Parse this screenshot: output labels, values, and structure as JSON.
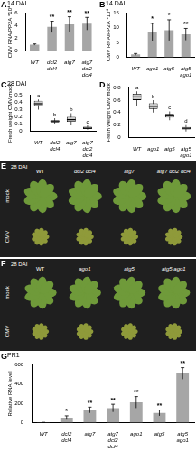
{
  "chart_data": [
    {
      "panel": "A",
      "type": "bar",
      "title": "14 DAI",
      "y_label": "CMV RNA/PP2A *10⁴",
      "categories": [
        "WT",
        "dcl2 dcl4",
        "atg7",
        "atg7 dcl2 dcl4"
      ],
      "values": [
        1,
        3.8,
        4.2,
        4.3
      ],
      "errors": [
        0.1,
        0.9,
        1.2,
        1.0
      ],
      "annotations": [
        null,
        "**",
        "**",
        "**"
      ],
      "color": "#a6a6a6",
      "ylim": [
        0,
        6
      ],
      "yticks": [
        0,
        2,
        4,
        6
      ],
      "grid": false
    },
    {
      "panel": "B",
      "type": "bar",
      "title": "14 DAI",
      "y_label": "CMV RNA/PP2A *10⁴",
      "categories": [
        "WT",
        "ago1",
        "atg5",
        "atg5 ago1"
      ],
      "values": [
        1,
        8.5,
        9.2,
        7.8
      ],
      "errors": [
        0.3,
        3,
        3.5,
        2
      ],
      "annotations": [
        null,
        "*",
        "*",
        "**"
      ],
      "color": "#a6a6a6",
      "ylim": [
        0,
        15
      ],
      "yticks": [
        0,
        5,
        10,
        15
      ],
      "grid": false
    },
    {
      "panel": "C",
      "type": "box",
      "title": "28 DAI",
      "y_label": "Fresh weight CMV/mock",
      "categories": [
        "WT",
        "dcl2 dcl4",
        "atg7",
        "atg7 dcl2 dcl4"
      ],
      "min": [
        0.3,
        0.1,
        0.08,
        0.02
      ],
      "q1": [
        0.35,
        0.12,
        0.13,
        0.03
      ],
      "median": [
        0.38,
        0.14,
        0.16,
        0.04
      ],
      "q3": [
        0.42,
        0.15,
        0.2,
        0.06
      ],
      "max": [
        0.44,
        0.18,
        0.25,
        0.08
      ],
      "annotations": [
        "a",
        "b",
        "b",
        "c"
      ],
      "color": "#cccccc",
      "ylim": [
        0,
        0.5
      ],
      "yticks": [
        0,
        0.1,
        0.2,
        0.3,
        0.4,
        0.5
      ],
      "grid": false
    },
    {
      "panel": "D",
      "type": "box",
      "y_label": "Fresh weight CMV/mock",
      "categories": [
        "WT",
        "ago1",
        "atg5",
        "atg5 ago1"
      ],
      "min": [
        0.5,
        0.4,
        0.28,
        0.1
      ],
      "q1": [
        0.6,
        0.46,
        0.32,
        0.13
      ],
      "median": [
        0.65,
        0.5,
        0.35,
        0.15
      ],
      "q3": [
        0.7,
        0.55,
        0.38,
        0.17
      ],
      "max": [
        0.74,
        0.6,
        0.42,
        0.2
      ],
      "annotations": [
        "a",
        "b",
        "c",
        "d"
      ],
      "color": "#cccccc",
      "ylim": [
        0,
        0.8
      ],
      "yticks": [
        0,
        0.2,
        0.4,
        0.6,
        0.8
      ],
      "grid": false
    },
    {
      "panel": "G",
      "type": "bar",
      "title": "PR1",
      "y_label": "Relative RNA level",
      "categories": [
        "WT",
        "dcl2 dcl4",
        "atg7",
        "atg7 dcl2 dcl4",
        "ago1",
        "atg5",
        "atg5 ago1"
      ],
      "values": [
        1,
        50,
        130,
        150,
        210,
        100,
        510
      ],
      "errors": [
        1,
        20,
        30,
        40,
        60,
        30,
        60
      ],
      "annotations": [
        null,
        "*",
        "**",
        "**",
        "**",
        "**",
        "**"
      ],
      "color": "#a6a6a6",
      "ylim": [
        0,
        600
      ],
      "yticks": [
        0,
        200,
        400,
        600
      ],
      "grid": false
    }
  ],
  "photo_panels": [
    {
      "panel": "E",
      "title": "28 DAI",
      "columns": [
        "WT",
        "dcl2 dcl4",
        "atg7",
        "atg7 dcl2 dcl4"
      ],
      "rows": [
        "mock",
        "CMV"
      ]
    },
    {
      "panel": "F",
      "title": "28 DAI",
      "columns": [
        "WT",
        "ago1",
        "atg5",
        "atg5 ago1"
      ],
      "rows": [
        "mock",
        "CMV"
      ]
    }
  ]
}
